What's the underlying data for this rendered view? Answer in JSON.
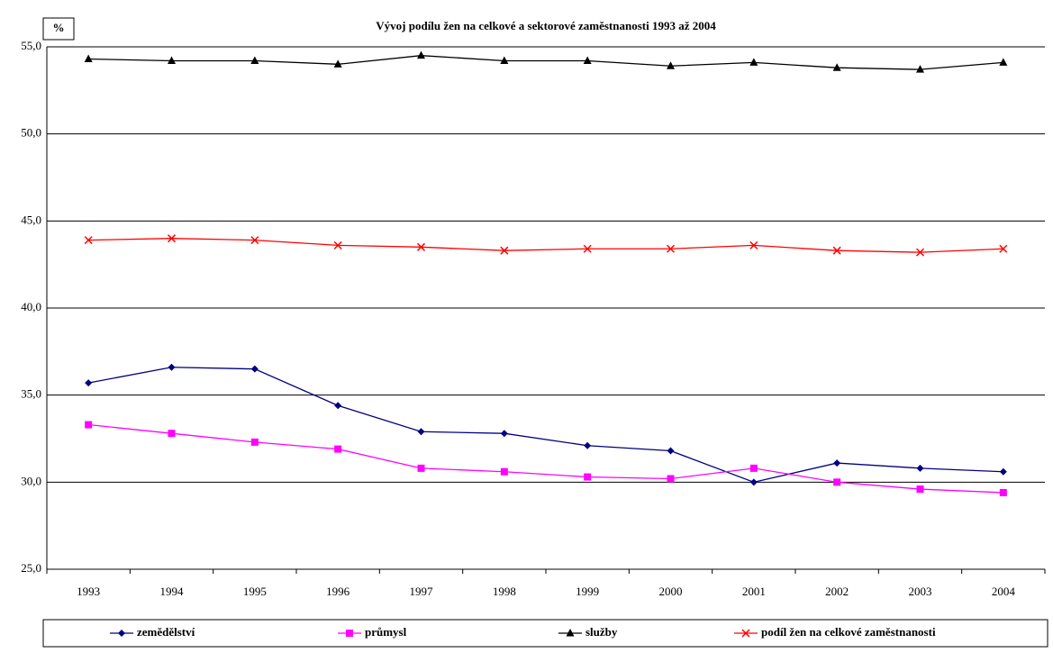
{
  "chart_data": {
    "type": "line",
    "title": "Vývoj podílu žen na celkové a sektorové zaměstnanosti 1993 až 2004",
    "y_label": "%",
    "categories": [
      "1993",
      "1994",
      "1995",
      "1996",
      "1997",
      "1998",
      "1999",
      "2000",
      "2001",
      "2002",
      "2003",
      "2004"
    ],
    "series": [
      {
        "name": "zemědělství",
        "color": "#000080",
        "marker": "diamond",
        "values": [
          35.7,
          36.6,
          36.5,
          34.4,
          32.9,
          32.8,
          32.1,
          31.8,
          30.0,
          31.1,
          30.8,
          30.6
        ]
      },
      {
        "name": "průmysl",
        "color": "#ff00ff",
        "marker": "square",
        "values": [
          33.3,
          32.8,
          32.3,
          31.9,
          30.8,
          30.6,
          30.3,
          30.2,
          30.8,
          30.0,
          29.6,
          29.4
        ]
      },
      {
        "name": "služby",
        "color": "#000000",
        "marker": "triangle",
        "values": [
          54.3,
          54.2,
          54.2,
          54.0,
          54.5,
          54.2,
          54.2,
          53.9,
          54.1,
          53.8,
          53.7,
          54.1
        ]
      },
      {
        "name": "podíl žen na celkové zaměstnanosti",
        "color": "#ff0000",
        "marker": "x",
        "values": [
          43.9,
          44.0,
          43.9,
          43.6,
          43.5,
          43.3,
          43.4,
          43.4,
          43.6,
          43.3,
          43.2,
          43.4
        ]
      }
    ],
    "ylim": [
      25,
      55
    ],
    "yticks": [
      {
        "value": 25,
        "label": "25,0"
      },
      {
        "value": 30,
        "label": "30,0"
      },
      {
        "value": 35,
        "label": "35,0"
      },
      {
        "value": 40,
        "label": "40,0"
      },
      {
        "value": 45,
        "label": "45,0"
      },
      {
        "value": 50,
        "label": "50,0"
      },
      {
        "value": 55,
        "label": "55,0"
      }
    ],
    "grid": true,
    "legend": "bottom"
  }
}
